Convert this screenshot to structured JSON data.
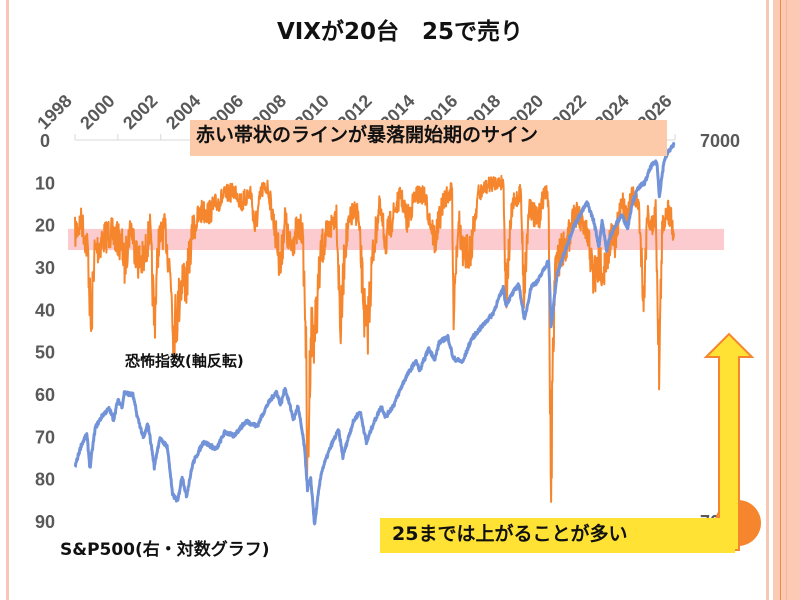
{
  "title": "VIXが20台　25で売り",
  "annotations": {
    "signal_band": "赤い帯状のラインが暴落開始期のサイン",
    "vix_label": "恐怖指数(軸反転)",
    "sp_label": "S&P500(右・対数グラフ)",
    "rise_note": "25までは上がることが多い"
  },
  "colors": {
    "vix": "#f5862e",
    "sp500": "#7393d8",
    "band": "#f9a9b0",
    "arrow": "#ffe233",
    "arrow_border": "#f5862e",
    "circle": "#f5862e"
  },
  "chart_data": {
    "type": "line",
    "x_axis": {
      "position": "top",
      "ticks": [
        "1998",
        "2000",
        "2002",
        "2004",
        "2006",
        "2008",
        "2010",
        "2012",
        "2014",
        "2016",
        "2018",
        "2020",
        "2022",
        "2024",
        "2026"
      ],
      "range": [
        1998,
        2026
      ]
    },
    "y_left": {
      "inverted": true,
      "range": [
        0,
        90
      ],
      "ticks": [
        "0",
        "10",
        "20",
        "30",
        "40",
        "50",
        "60",
        "70",
        "80",
        "90"
      ]
    },
    "y_right": {
      "scale": "log",
      "range": [
        700,
        7000
      ],
      "ticks": [
        "7000",
        "700"
      ]
    },
    "band": {
      "axis": "left",
      "from": 21,
      "to": 26
    },
    "series": [
      {
        "key": "vix",
        "axis": "left",
        "points": [
          [
            1998.0,
            22
          ],
          [
            1998.3,
            19
          ],
          [
            1998.6,
            26
          ],
          [
            1998.75,
            45
          ],
          [
            1998.9,
            27
          ],
          [
            1999.2,
            24
          ],
          [
            1999.6,
            22
          ],
          [
            1999.9,
            23
          ],
          [
            2000.2,
            25
          ],
          [
            2000.3,
            30
          ],
          [
            2000.6,
            20
          ],
          [
            2000.9,
            28
          ],
          [
            2001.2,
            29
          ],
          [
            2001.5,
            21
          ],
          [
            2001.7,
            43
          ],
          [
            2001.9,
            24
          ],
          [
            2002.2,
            21
          ],
          [
            2002.5,
            34
          ],
          [
            2002.6,
            45
          ],
          [
            2002.8,
            40
          ],
          [
            2003.0,
            32
          ],
          [
            2003.2,
            34
          ],
          [
            2003.5,
            21
          ],
          [
            2003.9,
            17
          ],
          [
            2004.3,
            17
          ],
          [
            2004.6,
            15
          ],
          [
            2005.0,
            13
          ],
          [
            2005.5,
            12
          ],
          [
            2005.8,
            15
          ],
          [
            2006.2,
            12
          ],
          [
            2006.4,
            21
          ],
          [
            2006.7,
            12
          ],
          [
            2007.0,
            11
          ],
          [
            2007.2,
            17
          ],
          [
            2007.6,
            30
          ],
          [
            2007.8,
            18
          ],
          [
            2008.0,
            26
          ],
          [
            2008.3,
            22
          ],
          [
            2008.6,
            21
          ],
          [
            2008.75,
            40
          ],
          [
            2008.85,
            80
          ],
          [
            2009.0,
            45
          ],
          [
            2009.2,
            45
          ],
          [
            2009.5,
            26
          ],
          [
            2009.9,
            21
          ],
          [
            2010.2,
            17
          ],
          [
            2010.4,
            45
          ],
          [
            2010.6,
            25
          ],
          [
            2010.9,
            18
          ],
          [
            2011.2,
            17
          ],
          [
            2011.6,
            48
          ],
          [
            2011.9,
            27
          ],
          [
            2012.2,
            16
          ],
          [
            2012.5,
            24
          ],
          [
            2012.9,
            17
          ],
          [
            2013.2,
            13
          ],
          [
            2013.5,
            19
          ],
          [
            2013.9,
            13
          ],
          [
            2014.3,
            13
          ],
          [
            2014.8,
            24
          ],
          [
            2015.2,
            14
          ],
          [
            2015.6,
            12
          ],
          [
            2015.65,
            40
          ],
          [
            2015.9,
            18
          ],
          [
            2016.1,
            28
          ],
          [
            2016.5,
            25
          ],
          [
            2016.8,
            13
          ],
          [
            2017.2,
            11
          ],
          [
            2017.6,
            10
          ],
          [
            2018.0,
            10
          ],
          [
            2018.1,
            37
          ],
          [
            2018.4,
            16
          ],
          [
            2018.8,
            12
          ],
          [
            2018.95,
            36
          ],
          [
            2019.2,
            15
          ],
          [
            2019.6,
            20
          ],
          [
            2019.9,
            12
          ],
          [
            2020.1,
            14
          ],
          [
            2020.2,
            83
          ],
          [
            2020.4,
            30
          ],
          [
            2020.7,
            26
          ],
          [
            2021.0,
            24
          ],
          [
            2021.3,
            17
          ],
          [
            2021.7,
            20
          ],
          [
            2022.0,
            25
          ],
          [
            2022.2,
            33
          ],
          [
            2022.5,
            29
          ],
          [
            2022.8,
            31
          ],
          [
            2023.0,
            22
          ],
          [
            2023.2,
            25
          ],
          [
            2023.5,
            14
          ],
          [
            2023.8,
            18
          ],
          [
            2024.0,
            13
          ],
          [
            2024.3,
            15
          ],
          [
            2024.55,
            38
          ],
          [
            2024.7,
            17
          ],
          [
            2024.95,
            21
          ],
          [
            2025.1,
            16
          ],
          [
            2025.26,
            53
          ],
          [
            2025.4,
            22
          ],
          [
            2025.6,
            16
          ],
          [
            2025.8,
            18
          ],
          [
            2025.95,
            22
          ]
        ]
      },
      {
        "key": "sp500",
        "axis": "right",
        "points": [
          [
            1998.0,
            970
          ],
          [
            1998.3,
            1110
          ],
          [
            1998.55,
            1180
          ],
          [
            1998.7,
            960
          ],
          [
            1998.95,
            1230
          ],
          [
            1999.3,
            1330
          ],
          [
            1999.6,
            1380
          ],
          [
            1999.8,
            1290
          ],
          [
            2000.0,
            1450
          ],
          [
            2000.2,
            1400
          ],
          [
            2000.3,
            1520
          ],
          [
            2000.7,
            1500
          ],
          [
            2000.9,
            1320
          ],
          [
            2001.2,
            1150
          ],
          [
            2001.4,
            1260
          ],
          [
            2001.7,
            970
          ],
          [
            2001.95,
            1150
          ],
          [
            2002.3,
            1100
          ],
          [
            2002.55,
            820
          ],
          [
            2002.8,
            790
          ],
          [
            2003.0,
            920
          ],
          [
            2003.2,
            810
          ],
          [
            2003.5,
            990
          ],
          [
            2004.0,
            1130
          ],
          [
            2004.6,
            1080
          ],
          [
            2005.0,
            1200
          ],
          [
            2005.4,
            1170
          ],
          [
            2006.0,
            1280
          ],
          [
            2006.5,
            1240
          ],
          [
            2007.0,
            1420
          ],
          [
            2007.4,
            1530
          ],
          [
            2007.6,
            1410
          ],
          [
            2007.8,
            1560
          ],
          [
            2008.2,
            1290
          ],
          [
            2008.4,
            1400
          ],
          [
            2008.7,
            1100
          ],
          [
            2008.85,
            850
          ],
          [
            2009.0,
            900
          ],
          [
            2009.18,
            680
          ],
          [
            2009.5,
            940
          ],
          [
            2010.0,
            1120
          ],
          [
            2010.3,
            1210
          ],
          [
            2010.5,
            1030
          ],
          [
            2011.0,
            1280
          ],
          [
            2011.3,
            1360
          ],
          [
            2011.6,
            1120
          ],
          [
            2011.9,
            1250
          ],
          [
            2012.3,
            1400
          ],
          [
            2012.5,
            1310
          ],
          [
            2012.9,
            1420
          ],
          [
            2013.4,
            1650
          ],
          [
            2013.9,
            1840
          ],
          [
            2014.1,
            1740
          ],
          [
            2014.5,
            1980
          ],
          [
            2014.8,
            1860
          ],
          [
            2015.0,
            2060
          ],
          [
            2015.4,
            2130
          ],
          [
            2015.65,
            1870
          ],
          [
            2016.1,
            1830
          ],
          [
            2016.5,
            2100
          ],
          [
            2017.0,
            2270
          ],
          [
            2017.5,
            2450
          ],
          [
            2018.0,
            2870
          ],
          [
            2018.1,
            2580
          ],
          [
            2018.7,
            2930
          ],
          [
            2018.98,
            2350
          ],
          [
            2019.3,
            2900
          ],
          [
            2019.6,
            2980
          ],
          [
            2020.1,
            3380
          ],
          [
            2020.22,
            2240
          ],
          [
            2020.5,
            3100
          ],
          [
            2020.9,
            3620
          ],
          [
            2021.3,
            4180
          ],
          [
            2021.9,
            4790
          ],
          [
            2022.2,
            4300
          ],
          [
            2022.45,
            3670
          ],
          [
            2022.6,
            4300
          ],
          [
            2022.8,
            3580
          ],
          [
            2023.0,
            3950
          ],
          [
            2023.5,
            4450
          ],
          [
            2023.8,
            4120
          ],
          [
            2024.0,
            4780
          ],
          [
            2024.3,
            5250
          ],
          [
            2024.6,
            5420
          ],
          [
            2024.9,
            6000
          ],
          [
            2025.15,
            6120
          ],
          [
            2025.27,
            4980
          ],
          [
            2025.5,
            6200
          ],
          [
            2025.75,
            6600
          ],
          [
            2025.95,
            6800
          ]
        ]
      }
    ]
  }
}
